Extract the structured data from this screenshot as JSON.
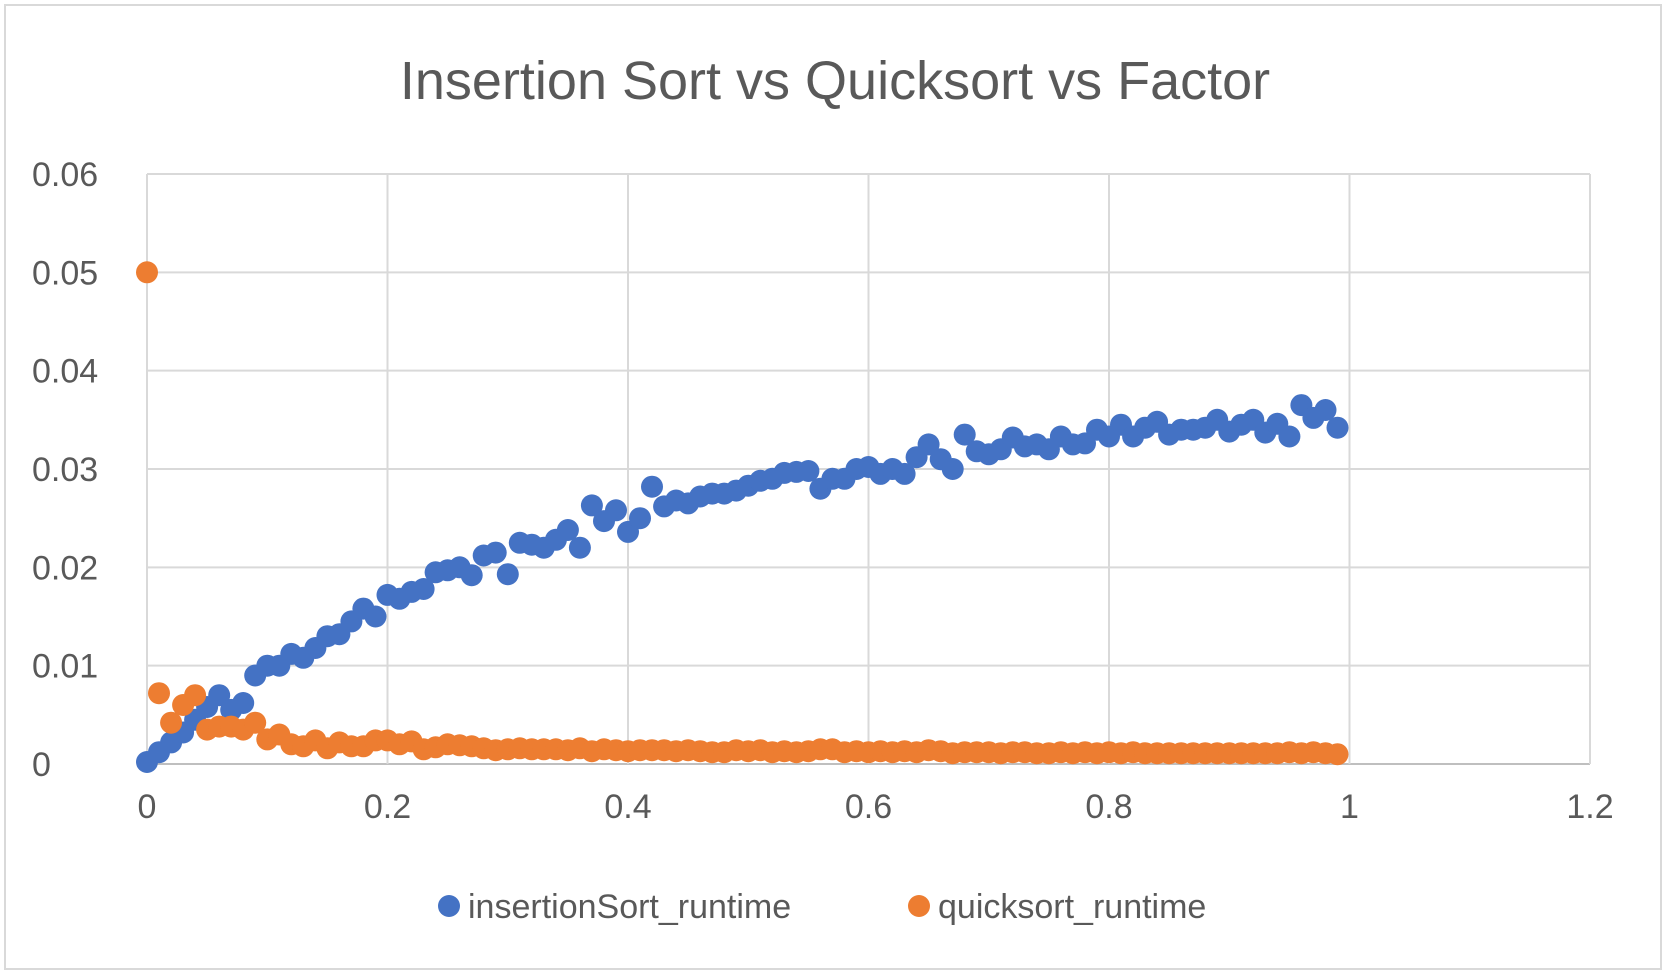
{
  "chart_data": {
    "type": "scatter",
    "title": "Insertion Sort vs Quicksort vs Factor",
    "xlabel": "",
    "ylabel": "",
    "xlim": [
      0,
      1.2
    ],
    "ylim": [
      0,
      0.06
    ],
    "x_ticks": [
      "0",
      "0.2",
      "0.4",
      "0.6",
      "0.8",
      "1",
      "1.2"
    ],
    "y_ticks": [
      "0",
      "0.01",
      "0.02",
      "0.03",
      "0.04",
      "0.05",
      "0.06"
    ],
    "grid": true,
    "legend_position": "bottom",
    "series": [
      {
        "name": "insertionSort_runtime",
        "color": "#4472C4",
        "points": [
          [
            0.0,
            0.0002
          ],
          [
            0.01,
            0.0012
          ],
          [
            0.02,
            0.0022
          ],
          [
            0.03,
            0.0032
          ],
          [
            0.04,
            0.0045
          ],
          [
            0.05,
            0.0058
          ],
          [
            0.06,
            0.007
          ],
          [
            0.07,
            0.0055
          ],
          [
            0.08,
            0.0062
          ],
          [
            0.09,
            0.009
          ],
          [
            0.1,
            0.01
          ],
          [
            0.11,
            0.01
          ],
          [
            0.12,
            0.0112
          ],
          [
            0.13,
            0.0108
          ],
          [
            0.14,
            0.0118
          ],
          [
            0.15,
            0.013
          ],
          [
            0.16,
            0.0132
          ],
          [
            0.17,
            0.0145
          ],
          [
            0.18,
            0.0158
          ],
          [
            0.19,
            0.015
          ],
          [
            0.2,
            0.0172
          ],
          [
            0.21,
            0.0168
          ],
          [
            0.22,
            0.0175
          ],
          [
            0.23,
            0.0178
          ],
          [
            0.24,
            0.0195
          ],
          [
            0.25,
            0.0197
          ],
          [
            0.26,
            0.02
          ],
          [
            0.27,
            0.0192
          ],
          [
            0.28,
            0.0212
          ],
          [
            0.29,
            0.0215
          ],
          [
            0.3,
            0.0193
          ],
          [
            0.31,
            0.0225
          ],
          [
            0.32,
            0.0223
          ],
          [
            0.33,
            0.022
          ],
          [
            0.34,
            0.0228
          ],
          [
            0.35,
            0.0238
          ],
          [
            0.36,
            0.022
          ],
          [
            0.37,
            0.0263
          ],
          [
            0.38,
            0.0247
          ],
          [
            0.39,
            0.0258
          ],
          [
            0.4,
            0.0236
          ],
          [
            0.41,
            0.025
          ],
          [
            0.42,
            0.0282
          ],
          [
            0.43,
            0.0262
          ],
          [
            0.44,
            0.0268
          ],
          [
            0.45,
            0.0265
          ],
          [
            0.46,
            0.0272
          ],
          [
            0.47,
            0.0275
          ],
          [
            0.48,
            0.0275
          ],
          [
            0.49,
            0.0278
          ],
          [
            0.5,
            0.0283
          ],
          [
            0.51,
            0.0288
          ],
          [
            0.52,
            0.029
          ],
          [
            0.53,
            0.0296
          ],
          [
            0.54,
            0.0297
          ],
          [
            0.55,
            0.0298
          ],
          [
            0.56,
            0.028
          ],
          [
            0.57,
            0.029
          ],
          [
            0.58,
            0.029
          ],
          [
            0.59,
            0.03
          ],
          [
            0.6,
            0.0302
          ],
          [
            0.61,
            0.0295
          ],
          [
            0.62,
            0.03
          ],
          [
            0.63,
            0.0295
          ],
          [
            0.64,
            0.0312
          ],
          [
            0.65,
            0.0325
          ],
          [
            0.66,
            0.031
          ],
          [
            0.67,
            0.03
          ],
          [
            0.68,
            0.0335
          ],
          [
            0.69,
            0.0318
          ],
          [
            0.7,
            0.0315
          ],
          [
            0.71,
            0.032
          ],
          [
            0.72,
            0.0332
          ],
          [
            0.73,
            0.0323
          ],
          [
            0.74,
            0.0325
          ],
          [
            0.75,
            0.032
          ],
          [
            0.76,
            0.0333
          ],
          [
            0.77,
            0.0325
          ],
          [
            0.78,
            0.0326
          ],
          [
            0.79,
            0.034
          ],
          [
            0.8,
            0.0333
          ],
          [
            0.81,
            0.0345
          ],
          [
            0.82,
            0.0333
          ],
          [
            0.83,
            0.0342
          ],
          [
            0.84,
            0.0348
          ],
          [
            0.85,
            0.0335
          ],
          [
            0.86,
            0.034
          ],
          [
            0.87,
            0.034
          ],
          [
            0.88,
            0.0342
          ],
          [
            0.89,
            0.035
          ],
          [
            0.9,
            0.0338
          ],
          [
            0.91,
            0.0345
          ],
          [
            0.92,
            0.035
          ],
          [
            0.93,
            0.0337
          ],
          [
            0.94,
            0.0346
          ],
          [
            0.95,
            0.0333
          ],
          [
            0.96,
            0.0365
          ],
          [
            0.97,
            0.0352
          ],
          [
            0.98,
            0.036
          ],
          [
            0.99,
            0.0342
          ]
        ]
      },
      {
        "name": "quicksort_runtime",
        "color": "#ED7D31",
        "points": [
          [
            0.0,
            0.05
          ],
          [
            0.01,
            0.0072
          ],
          [
            0.02,
            0.0042
          ],
          [
            0.03,
            0.006
          ],
          [
            0.04,
            0.007
          ],
          [
            0.05,
            0.0035
          ],
          [
            0.06,
            0.0038
          ],
          [
            0.07,
            0.0038
          ],
          [
            0.08,
            0.0035
          ],
          [
            0.09,
            0.0042
          ],
          [
            0.1,
            0.0025
          ],
          [
            0.11,
            0.003
          ],
          [
            0.12,
            0.002
          ],
          [
            0.13,
            0.0018
          ],
          [
            0.14,
            0.0024
          ],
          [
            0.15,
            0.0016
          ],
          [
            0.16,
            0.0022
          ],
          [
            0.17,
            0.0018
          ],
          [
            0.18,
            0.0018
          ],
          [
            0.19,
            0.0024
          ],
          [
            0.2,
            0.0024
          ],
          [
            0.21,
            0.002
          ],
          [
            0.22,
            0.0023
          ],
          [
            0.23,
            0.0015
          ],
          [
            0.24,
            0.0017
          ],
          [
            0.25,
            0.002
          ],
          [
            0.26,
            0.0019
          ],
          [
            0.27,
            0.0018
          ],
          [
            0.28,
            0.0016
          ],
          [
            0.29,
            0.0014
          ],
          [
            0.3,
            0.0015
          ],
          [
            0.31,
            0.0016
          ],
          [
            0.32,
            0.0015
          ],
          [
            0.33,
            0.0015
          ],
          [
            0.34,
            0.0015
          ],
          [
            0.35,
            0.0014
          ],
          [
            0.36,
            0.0016
          ],
          [
            0.37,
            0.0013
          ],
          [
            0.38,
            0.0015
          ],
          [
            0.39,
            0.0014
          ],
          [
            0.4,
            0.0013
          ],
          [
            0.41,
            0.0014
          ],
          [
            0.42,
            0.0014
          ],
          [
            0.43,
            0.0014
          ],
          [
            0.44,
            0.0013
          ],
          [
            0.45,
            0.0014
          ],
          [
            0.46,
            0.0013
          ],
          [
            0.47,
            0.0012
          ],
          [
            0.48,
            0.0012
          ],
          [
            0.49,
            0.0014
          ],
          [
            0.5,
            0.0013
          ],
          [
            0.51,
            0.0014
          ],
          [
            0.52,
            0.0012
          ],
          [
            0.53,
            0.0013
          ],
          [
            0.54,
            0.0012
          ],
          [
            0.55,
            0.0013
          ],
          [
            0.56,
            0.0015
          ],
          [
            0.57,
            0.0015
          ],
          [
            0.58,
            0.0012
          ],
          [
            0.59,
            0.0013
          ],
          [
            0.6,
            0.0012
          ],
          [
            0.61,
            0.0013
          ],
          [
            0.62,
            0.0012
          ],
          [
            0.63,
            0.0013
          ],
          [
            0.64,
            0.0012
          ],
          [
            0.65,
            0.0014
          ],
          [
            0.66,
            0.0013
          ],
          [
            0.67,
            0.0011
          ],
          [
            0.68,
            0.0012
          ],
          [
            0.69,
            0.0012
          ],
          [
            0.7,
            0.0012
          ],
          [
            0.71,
            0.0011
          ],
          [
            0.72,
            0.0012
          ],
          [
            0.73,
            0.0012
          ],
          [
            0.74,
            0.0011
          ],
          [
            0.75,
            0.0011
          ],
          [
            0.76,
            0.0012
          ],
          [
            0.77,
            0.0011
          ],
          [
            0.78,
            0.0012
          ],
          [
            0.79,
            0.0011
          ],
          [
            0.8,
            0.0012
          ],
          [
            0.81,
            0.0011
          ],
          [
            0.82,
            0.0012
          ],
          [
            0.83,
            0.0011
          ],
          [
            0.84,
            0.0011
          ],
          [
            0.85,
            0.0011
          ],
          [
            0.86,
            0.0011
          ],
          [
            0.87,
            0.0011
          ],
          [
            0.88,
            0.0011
          ],
          [
            0.89,
            0.0011
          ],
          [
            0.9,
            0.0011
          ],
          [
            0.91,
            0.0011
          ],
          [
            0.92,
            0.0011
          ],
          [
            0.93,
            0.0011
          ],
          [
            0.94,
            0.0011
          ],
          [
            0.95,
            0.0012
          ],
          [
            0.96,
            0.0011
          ],
          [
            0.97,
            0.0012
          ],
          [
            0.98,
            0.0011
          ],
          [
            0.99,
            0.001
          ]
        ]
      }
    ]
  }
}
